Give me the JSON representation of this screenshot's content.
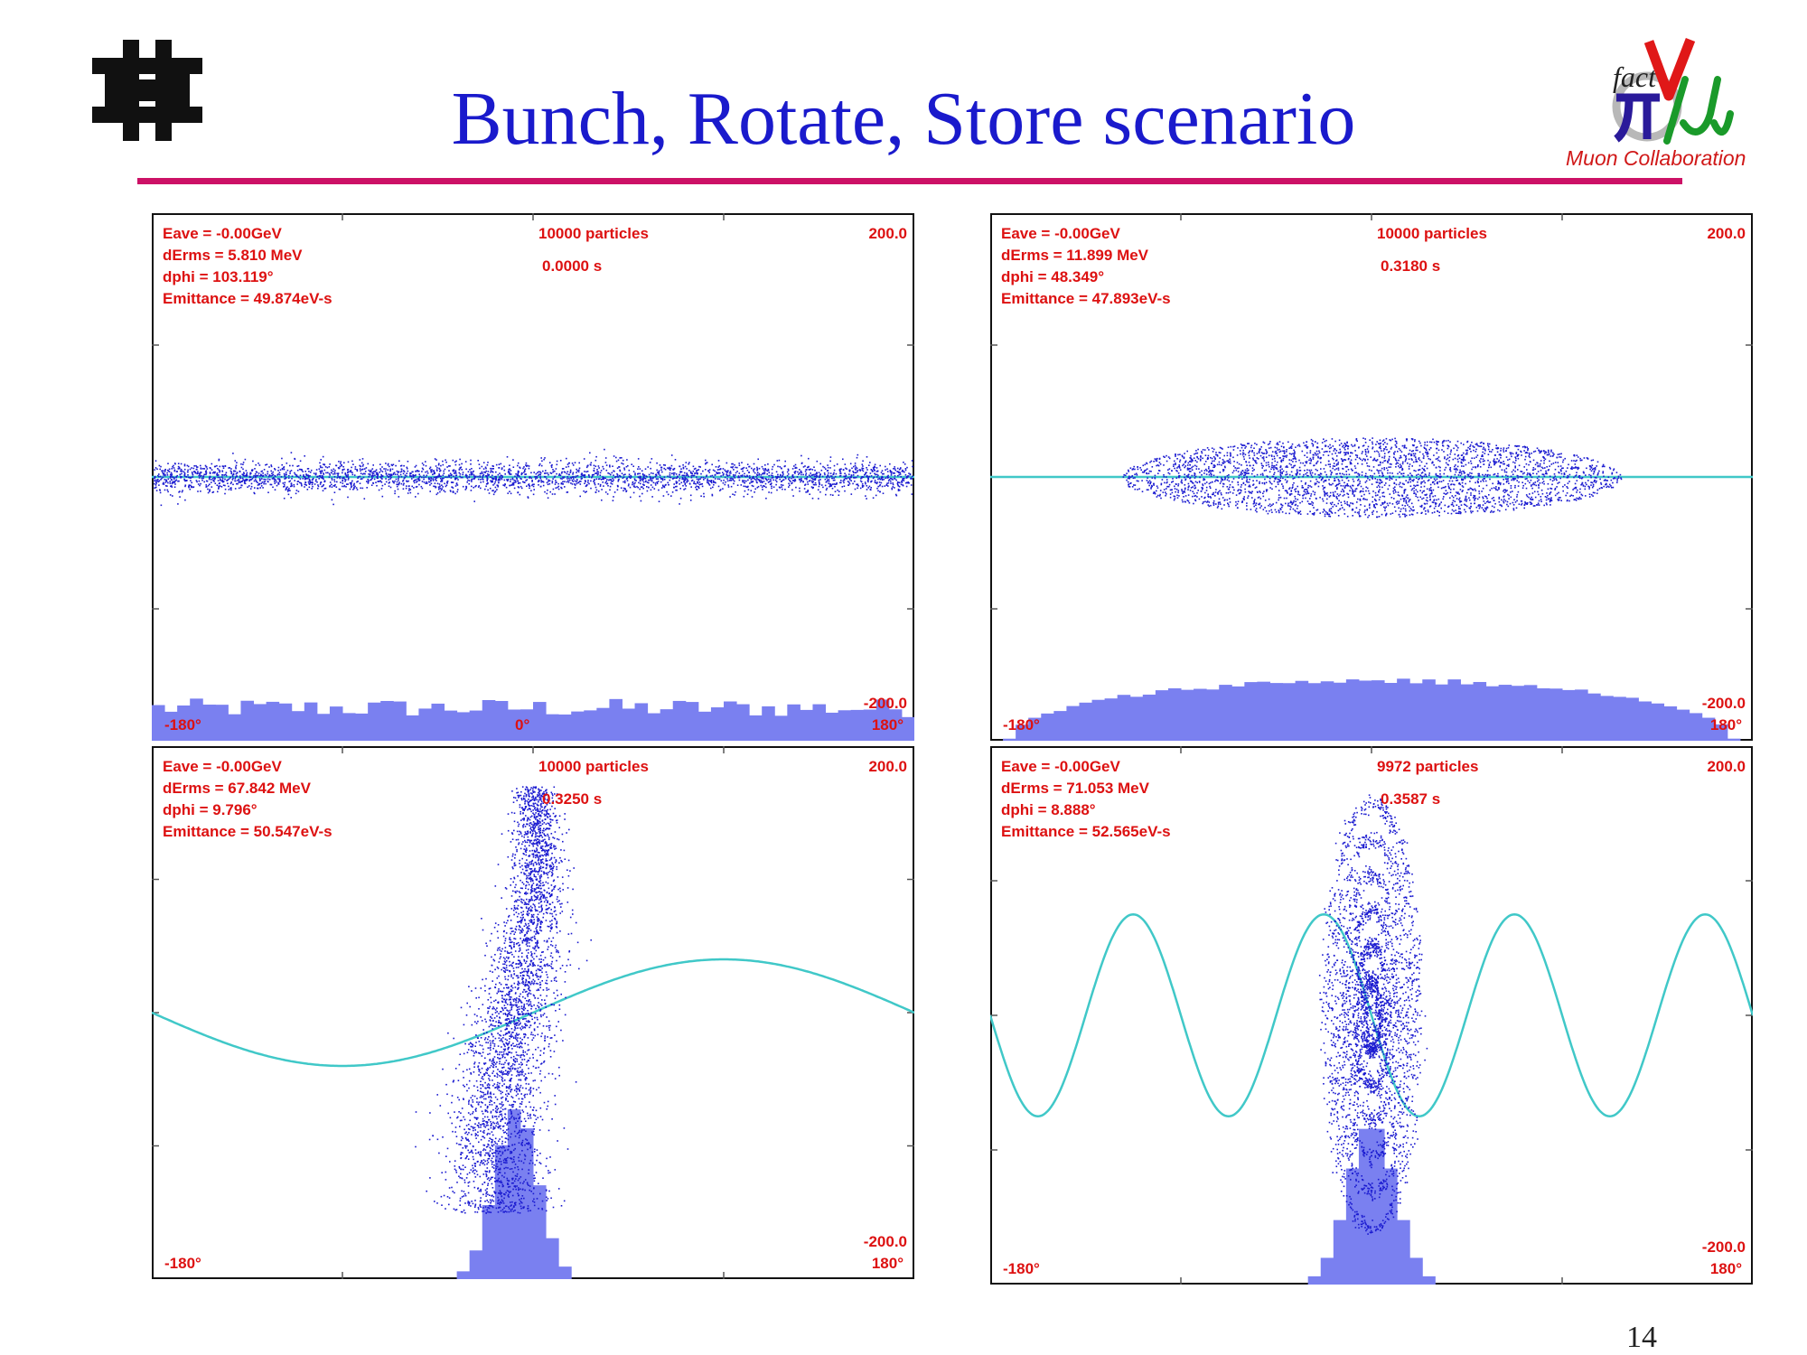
{
  "slide": {
    "title": "Bunch, Rotate, Store scenario",
    "page_number": "14",
    "logo_caption": "Muon Collaboration",
    "logo_text": "fact",
    "colors": {
      "title": "#1a1acc",
      "rule": "#cc1166",
      "label": "#dd1111",
      "particles": "#1a1ad0",
      "histogram": "#7a80f0",
      "rf_wave": "#40c8c8"
    }
  },
  "chart_data": [
    {
      "type": "scatter",
      "stats": [
        "Eave =   -0.00GeV",
        "dErms =  5.810 MeV",
        "dphi = 103.119°",
        "Emittance = 49.874eV-s"
      ],
      "particles_label": "10000 particles",
      "time_label": "0.0000 s",
      "ymax_label": "200.0",
      "ymin_label": "-200.0",
      "xmin_label": "-180°",
      "xmid_label": "0°",
      "xmax_label": "180°",
      "xlim": [
        -180,
        180
      ],
      "ylim": [
        -200,
        200
      ],
      "distribution": {
        "kind": "band",
        "phi_center": 0,
        "phi_half_width": 180,
        "dE_half_height": 12,
        "points": 3200
      },
      "rf_wave": {
        "amplitude": 0,
        "cycles": 0
      },
      "histogram": {
        "shape": "flat",
        "peak_fraction": 0.08
      }
    },
    {
      "type": "scatter",
      "stats": [
        "Eave =   -0.00GeV",
        "dErms = 11.899 MeV",
        "dphi = 48.349°",
        "Emittance = 47.893eV-s"
      ],
      "particles_label": "10000 particles",
      "time_label": "0.3180 s",
      "ymax_label": "200.0",
      "ymin_label": "-200.0",
      "xmin_label": "-180°",
      "xmax_label": "180°",
      "xlim": [
        -180,
        180
      ],
      "ylim": [
        -200,
        200
      ],
      "distribution": {
        "kind": "ellipse",
        "phi_center": 0,
        "phi_half_width": 118,
        "dE_half_height": 30,
        "points": 3200
      },
      "rf_wave": {
        "amplitude": 0,
        "cycles": 0
      },
      "histogram": {
        "shape": "hump",
        "peak_fraction": 0.12
      }
    },
    {
      "type": "scatter",
      "stats": [
        "Eave =   -0.00GeV",
        "dErms = 67.842 MeV",
        "dphi = 9.796°",
        "Emittance = 50.547eV-s"
      ],
      "particles_label": "10000 particles",
      "time_label": "0.3250 s",
      "ymax_label": "200.0",
      "ymin_label": "-200.0",
      "xmin_label": "-180°",
      "xmax_label": "180°",
      "xlim": [
        -180,
        180
      ],
      "ylim": [
        -200,
        200
      ],
      "distribution": {
        "kind": "s-curve",
        "phi_center": -8,
        "phi_half_width": 20,
        "dE_half_height": 160,
        "points": 3400
      },
      "rf_wave": {
        "amplitude": 40,
        "cycles": 1
      },
      "histogram": {
        "shape": "spike",
        "peak_fraction": 0.32
      }
    },
    {
      "type": "scatter",
      "stats": [
        "Eave =   -0.00GeV",
        "dErms = 71.053 MeV",
        "dphi = 8.888°",
        "Emittance = 52.565eV-s"
      ],
      "particles_label": "9972 particles",
      "time_label": "0.3587 s",
      "ymax_label": "200.0",
      "ymin_label": "-200.0",
      "xmin_label": "-180°",
      "xmax_label": "180°",
      "xlim": [
        -180,
        180
      ],
      "ylim": [
        -200,
        200
      ],
      "distribution": {
        "kind": "filament",
        "phi_center": 0,
        "phi_half_width": 22,
        "dE_half_height": 175,
        "points": 3400
      },
      "rf_wave": {
        "amplitude": 75,
        "cycles": 4
      },
      "histogram": {
        "shape": "spike",
        "peak_fraction": 0.3
      }
    }
  ]
}
